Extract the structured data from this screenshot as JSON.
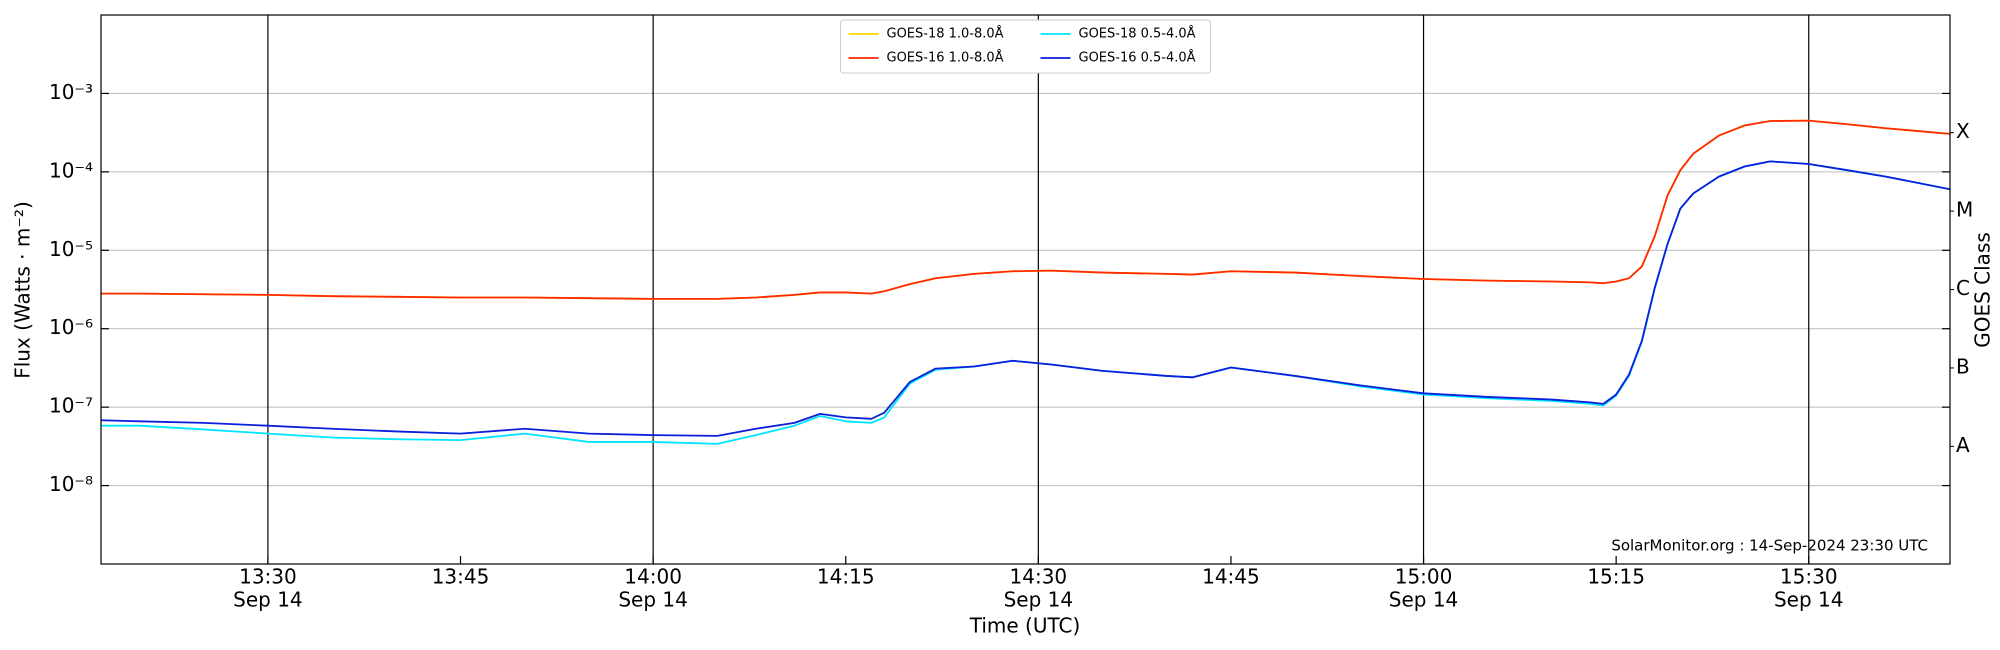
{
  "chart_data": {
    "type": "line",
    "xlabel": "Time (UTC)",
    "ylabel": "Flux (Watts · m⁻²)",
    "y2label": "GOES Class",
    "annotation": "SolarMonitor.org : 14-Sep-2024 23:30 UTC",
    "log_y": true,
    "grid": true,
    "legend": "upper center",
    "x": [
      "13:17",
      "13:20",
      "13:25",
      "13:30",
      "13:35",
      "13:40",
      "13:45",
      "13:50",
      "13:55",
      "14:00",
      "14:05",
      "14:08",
      "14:11",
      "14:13",
      "14:15",
      "14:17",
      "14:18",
      "14:20",
      "14:22",
      "14:25",
      "14:28",
      "14:31",
      "14:35",
      "14:40",
      "14:42",
      "14:45",
      "14:50",
      "14:55",
      "15:00",
      "15:05",
      "15:10",
      "15:13",
      "15:14",
      "15:15",
      "15:16",
      "15:17",
      "15:18",
      "15:19",
      "15:20",
      "15:21",
      "15:23",
      "15:25",
      "15:27",
      "15:30",
      "15:33",
      "15:36",
      "15:41"
    ],
    "xlim": [
      "13:17",
      "15:41"
    ],
    "xticks": [
      {
        "value": "13:30",
        "label": [
          "13:30",
          "Sep 14"
        ]
      },
      {
        "value": "13:45",
        "label": [
          "13:45"
        ]
      },
      {
        "value": "14:00",
        "label": [
          "14:00",
          "Sep 14"
        ]
      },
      {
        "value": "14:15",
        "label": [
          "14:15"
        ]
      },
      {
        "value": "14:30",
        "label": [
          "14:30",
          "Sep 14"
        ]
      },
      {
        "value": "14:45",
        "label": [
          "14:45"
        ]
      },
      {
        "value": "15:00",
        "label": [
          "15:00",
          "Sep 14"
        ]
      },
      {
        "value": "15:15",
        "label": [
          "15:15"
        ]
      },
      {
        "value": "15:30",
        "label": [
          "15:30",
          "Sep 14"
        ]
      }
    ],
    "ylim": [
      1e-09,
      0.01
    ],
    "yticks": [
      {
        "value": 1e-08,
        "label": "10⁻⁸"
      },
      {
        "value": 1e-07,
        "label": "10⁻⁷"
      },
      {
        "value": 1e-06,
        "label": "10⁻⁶"
      },
      {
        "value": 1e-05,
        "label": "10⁻⁵"
      },
      {
        "value": 0.0001,
        "label": "10⁻⁴"
      },
      {
        "value": 0.001,
        "label": "10⁻³"
      }
    ],
    "y2lim": [
      1e-09,
      0.01
    ],
    "y2ticks": [
      {
        "value": 3.16e-08,
        "label": "A"
      },
      {
        "value": 3.16e-07,
        "label": "B"
      },
      {
        "value": 3.16e-06,
        "label": "C"
      },
      {
        "value": 3.16e-05,
        "label": "M"
      },
      {
        "value": 0.000316,
        "label": "X"
      }
    ],
    "series": [
      {
        "name": "GOES-18 1.0-8.0Å",
        "color": "#ffd700",
        "values": [
          2.8e-06,
          2.8e-06,
          2.75e-06,
          2.7e-06,
          2.6e-06,
          2.55e-06,
          2.5e-06,
          2.5e-06,
          2.45e-06,
          2.4e-06,
          2.4e-06,
          2.5e-06,
          2.7e-06,
          2.9e-06,
          2.9e-06,
          2.8e-06,
          3e-06,
          3.7e-06,
          4.4e-06,
          5e-06,
          5.4e-06,
          5.5e-06,
          5.2e-06,
          5e-06,
          4.9e-06,
          5.4e-06,
          5.2e-06,
          4.7e-06,
          4.3e-06,
          4.1e-06,
          4e-06,
          3.9e-06,
          3.8e-06,
          4e-06,
          4.4e-06,
          6.2e-06,
          1.5e-05,
          5e-05,
          0.000105,
          0.00017,
          0.00029,
          0.00039,
          0.000445,
          0.00045,
          0.000405,
          0.00036,
          0.000305
        ]
      },
      {
        "name": "GOES-16 1.0-8.0Å",
        "color": "#ff2a00",
        "values": [
          2.8e-06,
          2.8e-06,
          2.75e-06,
          2.7e-06,
          2.6e-06,
          2.55e-06,
          2.5e-06,
          2.5e-06,
          2.45e-06,
          2.4e-06,
          2.4e-06,
          2.5e-06,
          2.7e-06,
          2.9e-06,
          2.9e-06,
          2.8e-06,
          3e-06,
          3.7e-06,
          4.4e-06,
          5e-06,
          5.4e-06,
          5.5e-06,
          5.2e-06,
          5e-06,
          4.9e-06,
          5.4e-06,
          5.2e-06,
          4.7e-06,
          4.3e-06,
          4.1e-06,
          4e-06,
          3.9e-06,
          3.8e-06,
          4e-06,
          4.4e-06,
          6.2e-06,
          1.5e-05,
          5e-05,
          0.000105,
          0.00017,
          0.00029,
          0.00039,
          0.000445,
          0.00045,
          0.000405,
          0.00036,
          0.000305
        ]
      },
      {
        "name": "GOES-18 0.5-4.0Å",
        "color": "#00e5ff",
        "values": [
          5.8e-08,
          5.8e-08,
          5.2e-08,
          4.6e-08,
          4.1e-08,
          3.9e-08,
          3.8e-08,
          4.6e-08,
          3.6e-08,
          3.6e-08,
          3.4e-08,
          4.4e-08,
          5.8e-08,
          7.7e-08,
          6.6e-08,
          6.3e-08,
          7.4e-08,
          2e-07,
          3e-07,
          3.3e-07,
          3.9e-07,
          3.5e-07,
          2.9e-07,
          2.5e-07,
          2.4e-07,
          3.2e-07,
          2.5e-07,
          1.85e-07,
          1.45e-07,
          1.3e-07,
          1.2e-07,
          1.1e-07,
          1.05e-07,
          1.4e-07,
          2.5e-07,
          6.8e-07,
          3.2e-06,
          1.2e-05,
          3.4e-05,
          5.3e-05,
          8.7e-05,
          0.000117,
          0.000136,
          0.000126,
          0.000105,
          8.7e-05,
          6e-05
        ]
      },
      {
        "name": "GOES-16 0.5-4.0Å",
        "color": "#0a1edc",
        "values": [
          6.8e-08,
          6.6e-08,
          6.3e-08,
          5.8e-08,
          5.3e-08,
          4.9e-08,
          4.6e-08,
          5.3e-08,
          4.6e-08,
          4.4e-08,
          4.3e-08,
          5.3e-08,
          6.3e-08,
          8.2e-08,
          7.4e-08,
          7.1e-08,
          8.5e-08,
          2.1e-07,
          3.1e-07,
          3.3e-07,
          3.9e-07,
          3.5e-07,
          2.9e-07,
          2.5e-07,
          2.4e-07,
          3.2e-07,
          2.5e-07,
          1.9e-07,
          1.5e-07,
          1.35e-07,
          1.25e-07,
          1.15e-07,
          1.1e-07,
          1.45e-07,
          2.6e-07,
          7e-07,
          3.3e-06,
          1.2e-05,
          3.4e-05,
          5.3e-05,
          8.7e-05,
          0.000117,
          0.000136,
          0.000126,
          0.000105,
          8.7e-05,
          6e-05
        ]
      }
    ]
  }
}
